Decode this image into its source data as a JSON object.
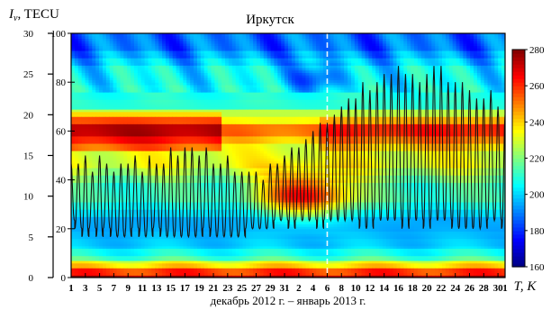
{
  "chart_data": {
    "type": "heatmap",
    "title": "Иркутск",
    "xlabel": "декабрь 2012 г. – январь 2013 г.",
    "ylabel_left": "I",
    "ylabel_left_sub": "v",
    "ylabel_left_unit": ", TECU",
    "ylabel_inner": "",
    "colorbar_label": "T, K",
    "tec_axis": {
      "ticks": [
        0,
        5,
        10,
        15,
        20,
        25,
        30
      ],
      "ylim": [
        0,
        30
      ]
    },
    "height_axis": {
      "ticks": [
        0,
        20,
        40,
        60,
        80,
        100
      ],
      "ylim": [
        0,
        100
      ]
    },
    "colorbar": {
      "ticks": [
        160,
        180,
        200,
        220,
        240,
        260,
        280
      ],
      "range": [
        160,
        280
      ]
    },
    "x_tick_labels": [
      "1",
      "3",
      "5",
      "7",
      "9",
      "11",
      "13",
      "15",
      "17",
      "19",
      "21",
      "23",
      "25",
      "27",
      "29",
      "31",
      "2",
      "4",
      "6",
      "8",
      "10",
      "12",
      "14",
      "16",
      "18",
      "20",
      "22",
      "24",
      "26",
      "28",
      "30",
      "1"
    ],
    "days_total": 62,
    "dashed_marker_day": 37,
    "tec_daily_maxima": [
      14,
      14,
      15,
      13,
      15,
      14,
      13,
      14,
      14,
      15,
      13,
      15,
      14,
      14,
      16,
      15,
      16,
      16,
      15,
      16,
      14,
      14,
      15,
      13,
      13,
      13,
      13,
      12,
      14,
      14,
      15,
      16,
      16,
      17,
      18,
      19,
      19,
      20,
      21,
      22,
      22,
      24,
      23,
      24,
      25,
      25,
      26,
      25,
      25,
      24,
      25,
      26,
      26,
      24,
      24,
      24,
      23,
      22,
      22,
      23,
      21,
      20
    ],
    "tec_daily_minima": [
      7,
      6,
      5,
      6,
      5,
      6,
      5,
      5,
      5,
      6,
      5,
      5,
      6,
      5,
      5,
      5,
      5,
      5,
      5,
      6,
      5,
      5,
      5,
      5,
      5,
      6,
      6,
      6,
      6,
      7,
      7,
      6,
      7,
      7,
      7,
      6,
      7,
      7,
      7,
      7,
      7,
      6,
      6,
      7,
      7,
      7,
      7,
      6,
      7,
      7,
      6,
      7,
      7,
      7,
      6,
      6,
      6,
      6,
      6,
      7,
      7,
      6
    ],
    "temperature_layers_K": [
      {
        "height_range": [
          0,
          4
        ],
        "value": 278
      },
      {
        "height_range": [
          4,
          9
        ],
        "value": 220
      },
      {
        "height_range": [
          9,
          16
        ],
        "value": 200
      },
      {
        "height_range": [
          16,
          28
        ],
        "value": 195
      },
      {
        "height_range": [
          28,
          42
        ],
        "value": 212
      },
      {
        "height_range": [
          42,
          55
        ],
        "value": 232
      },
      {
        "height_range": [
          55,
          66
        ],
        "value": 262
      },
      {
        "height_range": [
          66,
          76
        ],
        "value": 210
      },
      {
        "height_range": [
          76,
          90
        ],
        "value": 205
      },
      {
        "height_range": [
          90,
          100
        ],
        "value": 188
      }
    ]
  }
}
